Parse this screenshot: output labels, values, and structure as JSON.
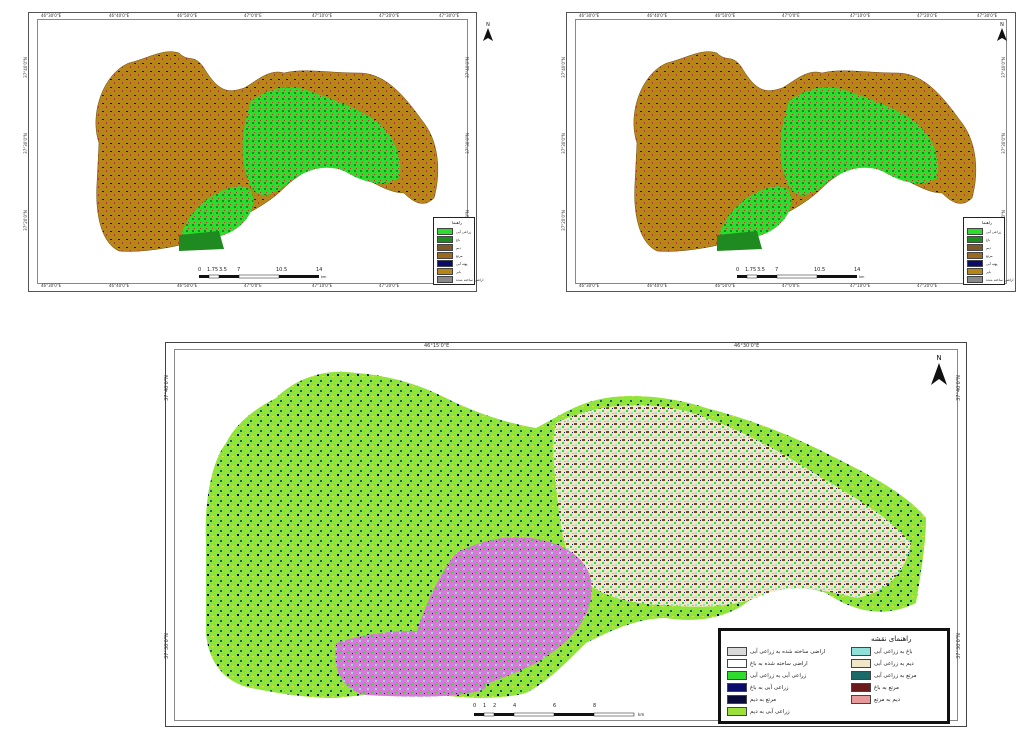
{
  "maps": {
    "left": {
      "legend_title": "راهنما",
      "legend_items": [
        {
          "label": "زراعی آبی",
          "color": "#2edc2e"
        },
        {
          "label": "باغ",
          "color": "#1f8a1f"
        },
        {
          "label": "دیم",
          "color": "#7a5a2a"
        },
        {
          "label": "مرتع",
          "color": "#9b6a1c"
        },
        {
          "label": "پهنه آبی",
          "color": "#0b0b6e"
        },
        {
          "label": "بایر",
          "color": "#b58518"
        },
        {
          "label": "اراضی ساخته شده",
          "color": "#8a8a8a"
        }
      ],
      "scale_labels": [
        "0",
        "1.75",
        "3.5",
        "7",
        "10.5",
        "14"
      ],
      "scale_unit": "km",
      "north_label": "N",
      "top_ticks": [
        "46°30'0\"E",
        "46°40'0\"E",
        "46°50'0\"E",
        "47°0'0\"E",
        "47°10'0\"E",
        "47°20'0\"E",
        "47°30'0\"E"
      ],
      "side_ticks": [
        "37°40'0\"N",
        "37°30'0\"N",
        "37°20'0\"N"
      ]
    },
    "right": {
      "legend_title": "راهنما",
      "legend_items": [
        {
          "label": "زراعی آبی",
          "color": "#2edc2e"
        },
        {
          "label": "باغ",
          "color": "#1f8a1f"
        },
        {
          "label": "دیم",
          "color": "#7a5a2a"
        },
        {
          "label": "مرتع",
          "color": "#9b6a1c"
        },
        {
          "label": "پهنه آبی",
          "color": "#0b0b6e"
        },
        {
          "label": "بایر",
          "color": "#b58518"
        },
        {
          "label": "اراضی ساخته شده",
          "color": "#8a8a8a"
        }
      ],
      "scale_labels": [
        "0",
        "1.75",
        "3.5",
        "7",
        "10.5",
        "14"
      ],
      "scale_unit": "km",
      "north_label": "N",
      "top_ticks": [
        "46°30'0\"E",
        "46°40'0\"E",
        "46°50'0\"E",
        "47°0'0\"E",
        "47°10'0\"E",
        "47°20'0\"E",
        "47°30'0\"E"
      ],
      "side_ticks": [
        "37°40'0\"N",
        "37°30'0\"N",
        "37°20'0\"N"
      ]
    },
    "bottom": {
      "legend_title": "راهنمای نقشه",
      "legend_items_left": [
        {
          "label": "اراضی ساخته شده به زراعی آبی",
          "color": "#d9d9d9"
        },
        {
          "label": "اراضی ساخته شده به باغ",
          "color": "#ffffff"
        },
        {
          "label": "زراعی آبی به زراعی آبی",
          "color": "#2edc2e"
        },
        {
          "label": "زراعی آبی به باغ",
          "color": "#0b0b6e"
        },
        {
          "label": "مرتع به دیم",
          "color": "#0a0a3a"
        },
        {
          "label": "زراعی آبی به دیم",
          "color": "#9be03a"
        }
      ],
      "legend_items_right": [
        {
          "label": "باغ به زراعی آبی",
          "color": "#8fe0d8"
        },
        {
          "label": "دیم به زراعی آبی",
          "color": "#f0e6c8"
        },
        {
          "label": "مرتع به زراعی آبی",
          "color": "#1b6a6a"
        },
        {
          "label": "مرتع به باغ",
          "color": "#6a1a1a"
        },
        {
          "label": "دیم به مرتع",
          "color": "#e89a9a"
        }
      ],
      "scale_labels": [
        "0",
        "1",
        "2",
        "4",
        "6",
        "8"
      ],
      "scale_unit": "km",
      "north_label": "N",
      "top_ticks": [
        "46°15'0\"E",
        "46°30'0\"E"
      ],
      "side_ticks": [
        "37°40'0\"N",
        "37°30'0\"N"
      ]
    }
  }
}
